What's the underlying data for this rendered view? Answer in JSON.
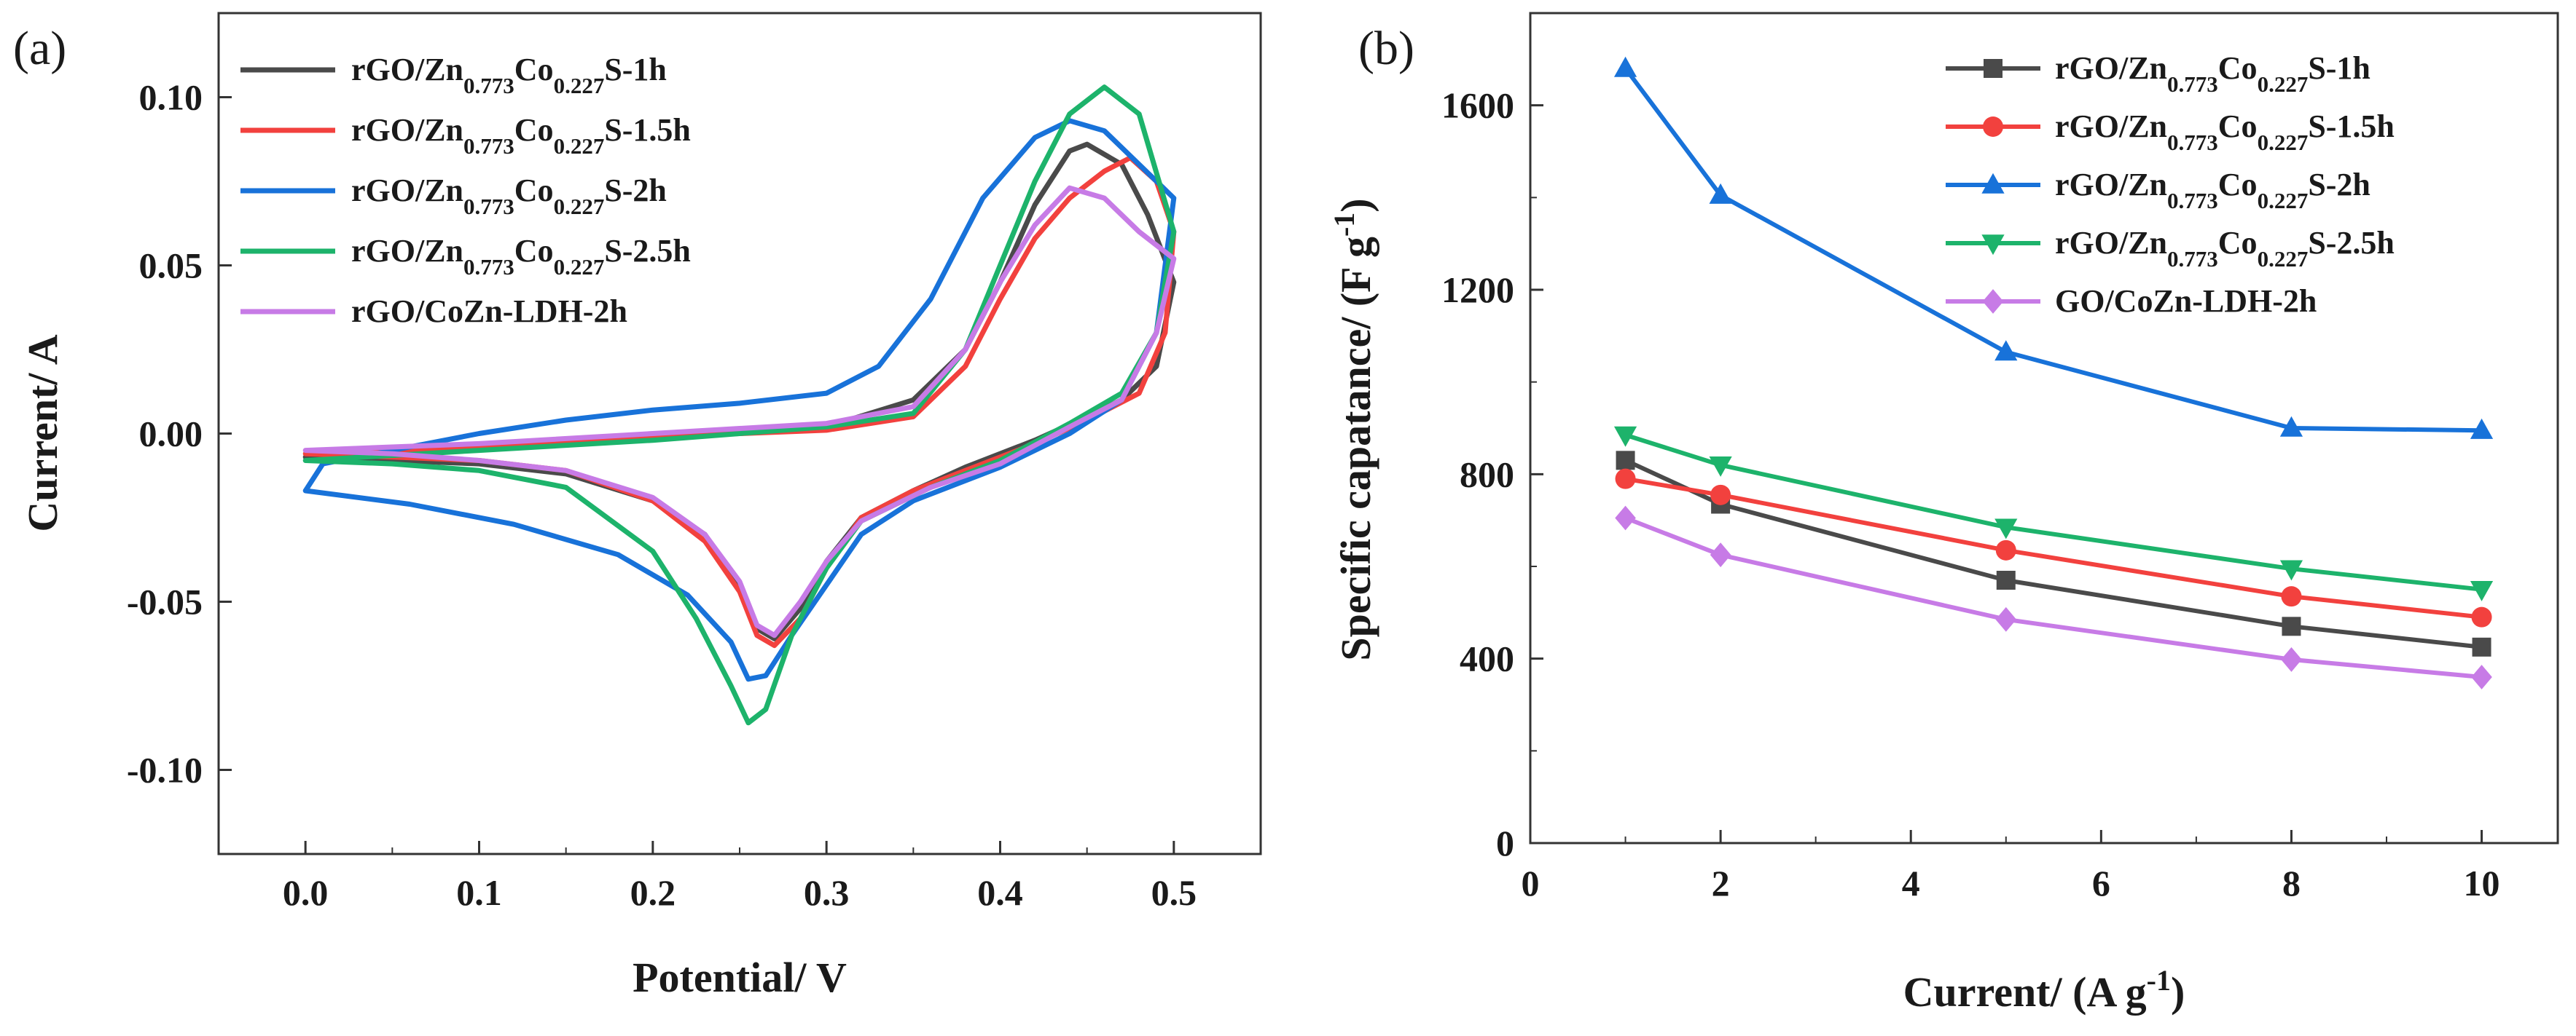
{
  "colors": {
    "black": "#4a4a4a",
    "red": "#f2413e",
    "blue": "#1872d9",
    "green": "#1db36b",
    "violet": "#c77be6"
  },
  "panel_a": {
    "label": "(a)",
    "xlabel": "Potential/ V",
    "ylabel": "Current/ A",
    "legend": [
      {
        "base": "rGO/Zn",
        "sub1": "0.773",
        "mid": "Co",
        "sub2": "0.227",
        "tail": "S-1h",
        "color_key": "black"
      },
      {
        "base": "rGO/Zn",
        "sub1": "0.773",
        "mid": "Co",
        "sub2": "0.227",
        "tail": "S-1.5h",
        "color_key": "red"
      },
      {
        "base": "rGO/Zn",
        "sub1": "0.773",
        "mid": "Co",
        "sub2": "0.227",
        "tail": "S-2h",
        "color_key": "blue"
      },
      {
        "base": "rGO/Zn",
        "sub1": "0.773",
        "mid": "Co",
        "sub2": "0.227",
        "tail": "S-2.5h",
        "color_key": "green"
      },
      {
        "base": "rGO/CoZn-LDH-2h",
        "sub1": "",
        "mid": "",
        "sub2": "",
        "tail": "",
        "color_key": "violet"
      }
    ]
  },
  "panel_b": {
    "label": "(b)",
    "xlabel": "Current/ (A g",
    "xlabel_sup": "-1",
    "xlabel_end": ")",
    "ylabel": "Specific capatance/ (F g",
    "ylabel_sup": "-1",
    "ylabel_end": ")",
    "legend": [
      {
        "base": "rGO/Zn",
        "sub1": "0.773",
        "mid": "Co",
        "sub2": "0.227",
        "tail": "S-1h",
        "color_key": "black",
        "marker": "square"
      },
      {
        "base": "rGO/Zn",
        "sub1": "0.773",
        "mid": "Co",
        "sub2": "0.227",
        "tail": "S-1.5h",
        "color_key": "red",
        "marker": "circle"
      },
      {
        "base": "rGO/Zn",
        "sub1": "0.773",
        "mid": "Co",
        "sub2": "0.227",
        "tail": "S-2h",
        "color_key": "blue",
        "marker": "triangle-up"
      },
      {
        "base": "rGO/Zn",
        "sub1": "0.773",
        "mid": "Co",
        "sub2": "0.227",
        "tail": "S-2.5h",
        "color_key": "green",
        "marker": "triangle-down"
      },
      {
        "base": "GO/CoZn-LDH-2h",
        "sub1": "",
        "mid": "",
        "sub2": "",
        "tail": "",
        "color_key": "violet",
        "marker": "diamond"
      }
    ]
  },
  "chart_data": [
    {
      "type": "line",
      "panel": "(a)",
      "xlabel": "Potential/ V",
      "ylabel": "Current/ A",
      "xlim": [
        -0.05,
        0.55
      ],
      "ylim": [
        -0.125,
        0.125
      ],
      "xticks": [
        0.0,
        0.1,
        0.2,
        0.3,
        0.4,
        0.5
      ],
      "yticks": [
        -0.1,
        -0.05,
        0.0,
        0.05,
        0.1
      ],
      "xtick_labels": [
        "0.0",
        "0.1",
        "0.2",
        "0.3",
        "0.4",
        "0.5"
      ],
      "ytick_labels": [
        "-0.10",
        "-0.05",
        "0.00",
        "0.05",
        "0.10"
      ],
      "grid": false,
      "legend_position": "top-left",
      "series": [
        {
          "name": "rGO/Zn0.773Co0.227S-1h",
          "color_key": "black",
          "points": [
            [
              0.0,
              -0.007
            ],
            [
              0.1,
              -0.004
            ],
            [
              0.2,
              -0.001
            ],
            [
              0.3,
              0.002
            ],
            [
              0.35,
              0.01
            ],
            [
              0.38,
              0.025
            ],
            [
              0.4,
              0.045
            ],
            [
              0.42,
              0.068
            ],
            [
              0.44,
              0.084
            ],
            [
              0.45,
              0.086
            ],
            [
              0.47,
              0.08
            ],
            [
              0.485,
              0.065
            ],
            [
              0.5,
              0.045
            ],
            [
              0.49,
              0.02
            ],
            [
              0.47,
              0.01
            ],
            [
              0.45,
              0.005
            ],
            [
              0.42,
              -0.002
            ],
            [
              0.38,
              -0.01
            ],
            [
              0.35,
              -0.017
            ],
            [
              0.32,
              -0.025
            ],
            [
              0.3,
              -0.038
            ],
            [
              0.285,
              -0.052
            ],
            [
              0.27,
              -0.061
            ],
            [
              0.26,
              -0.058
            ],
            [
              0.25,
              -0.045
            ],
            [
              0.23,
              -0.03
            ],
            [
              0.2,
              -0.02
            ],
            [
              0.15,
              -0.012
            ],
            [
              0.1,
              -0.009
            ],
            [
              0.05,
              -0.008
            ],
            [
              0.0,
              -0.007
            ]
          ]
        },
        {
          "name": "rGO/Zn0.773Co0.227S-1.5h",
          "color_key": "red",
          "points": [
            [
              0.0,
              -0.006
            ],
            [
              0.1,
              -0.004
            ],
            [
              0.2,
              -0.001
            ],
            [
              0.3,
              0.001
            ],
            [
              0.35,
              0.005
            ],
            [
              0.38,
              0.02
            ],
            [
              0.4,
              0.04
            ],
            [
              0.42,
              0.058
            ],
            [
              0.44,
              0.07
            ],
            [
              0.46,
              0.078
            ],
            [
              0.475,
              0.082
            ],
            [
              0.49,
              0.075
            ],
            [
              0.5,
              0.06
            ],
            [
              0.495,
              0.03
            ],
            [
              0.48,
              0.012
            ],
            [
              0.45,
              0.004
            ],
            [
              0.42,
              -0.003
            ],
            [
              0.38,
              -0.011
            ],
            [
              0.35,
              -0.017
            ],
            [
              0.32,
              -0.025
            ],
            [
              0.3,
              -0.04
            ],
            [
              0.285,
              -0.055
            ],
            [
              0.27,
              -0.063
            ],
            [
              0.26,
              -0.06
            ],
            [
              0.25,
              -0.047
            ],
            [
              0.23,
              -0.032
            ],
            [
              0.2,
              -0.02
            ],
            [
              0.15,
              -0.011
            ],
            [
              0.1,
              -0.008
            ],
            [
              0.05,
              -0.007
            ],
            [
              0.0,
              -0.006
            ]
          ]
        },
        {
          "name": "rGO/Zn0.773Co0.227S-2h",
          "color_key": "blue",
          "points": [
            [
              0.0,
              -0.017
            ],
            [
              0.01,
              -0.009
            ],
            [
              0.05,
              -0.005
            ],
            [
              0.1,
              0.0
            ],
            [
              0.15,
              0.004
            ],
            [
              0.2,
              0.007
            ],
            [
              0.25,
              0.009
            ],
            [
              0.3,
              0.012
            ],
            [
              0.33,
              0.02
            ],
            [
              0.36,
              0.04
            ],
            [
              0.39,
              0.07
            ],
            [
              0.42,
              0.088
            ],
            [
              0.44,
              0.093
            ],
            [
              0.46,
              0.09
            ],
            [
              0.48,
              0.08
            ],
            [
              0.5,
              0.07
            ],
            [
              0.49,
              0.03
            ],
            [
              0.47,
              0.01
            ],
            [
              0.44,
              0.0
            ],
            [
              0.4,
              -0.01
            ],
            [
              0.35,
              -0.02
            ],
            [
              0.32,
              -0.03
            ],
            [
              0.3,
              -0.045
            ],
            [
              0.28,
              -0.06
            ],
            [
              0.265,
              -0.072
            ],
            [
              0.255,
              -0.073
            ],
            [
              0.245,
              -0.062
            ],
            [
              0.22,
              -0.048
            ],
            [
              0.18,
              -0.036
            ],
            [
              0.12,
              -0.027
            ],
            [
              0.06,
              -0.021
            ],
            [
              0.0,
              -0.017
            ]
          ]
        },
        {
          "name": "rGO/Zn0.773Co0.227S-2.5h",
          "color_key": "green",
          "points": [
            [
              0.0,
              -0.008
            ],
            [
              0.1,
              -0.005
            ],
            [
              0.2,
              -0.002
            ],
            [
              0.3,
              0.002
            ],
            [
              0.35,
              0.006
            ],
            [
              0.38,
              0.025
            ],
            [
              0.4,
              0.05
            ],
            [
              0.42,
              0.075
            ],
            [
              0.44,
              0.095
            ],
            [
              0.46,
              0.103
            ],
            [
              0.48,
              0.095
            ],
            [
              0.5,
              0.06
            ],
            [
              0.49,
              0.03
            ],
            [
              0.47,
              0.012
            ],
            [
              0.44,
              0.003
            ],
            [
              0.4,
              -0.008
            ],
            [
              0.36,
              -0.016
            ],
            [
              0.32,
              -0.026
            ],
            [
              0.3,
              -0.04
            ],
            [
              0.28,
              -0.06
            ],
            [
              0.265,
              -0.082
            ],
            [
              0.255,
              -0.086
            ],
            [
              0.245,
              -0.075
            ],
            [
              0.225,
              -0.055
            ],
            [
              0.2,
              -0.035
            ],
            [
              0.15,
              -0.016
            ],
            [
              0.1,
              -0.011
            ],
            [
              0.05,
              -0.009
            ],
            [
              0.0,
              -0.008
            ]
          ]
        },
        {
          "name": "rGO/CoZn-LDH-2h",
          "color_key": "violet",
          "points": [
            [
              0.0,
              -0.005
            ],
            [
              0.1,
              -0.003
            ],
            [
              0.2,
              0.0
            ],
            [
              0.3,
              0.003
            ],
            [
              0.35,
              0.008
            ],
            [
              0.38,
              0.025
            ],
            [
              0.4,
              0.045
            ],
            [
              0.42,
              0.062
            ],
            [
              0.44,
              0.073
            ],
            [
              0.46,
              0.07
            ],
            [
              0.48,
              0.06
            ],
            [
              0.5,
              0.052
            ],
            [
              0.49,
              0.03
            ],
            [
              0.47,
              0.01
            ],
            [
              0.44,
              0.002
            ],
            [
              0.4,
              -0.009
            ],
            [
              0.36,
              -0.016
            ],
            [
              0.32,
              -0.026
            ],
            [
              0.3,
              -0.038
            ],
            [
              0.285,
              -0.05
            ],
            [
              0.27,
              -0.06
            ],
            [
              0.26,
              -0.057
            ],
            [
              0.25,
              -0.044
            ],
            [
              0.23,
              -0.03
            ],
            [
              0.2,
              -0.019
            ],
            [
              0.15,
              -0.011
            ],
            [
              0.1,
              -0.008
            ],
            [
              0.05,
              -0.006
            ],
            [
              0.0,
              -0.005
            ]
          ]
        }
      ]
    },
    {
      "type": "line",
      "panel": "(b)",
      "xlabel": "Current/ (A g-1)",
      "ylabel": "Specific capatance/ (F g-1)",
      "xlim": [
        0,
        10.8
      ],
      "ylim": [
        0,
        1800
      ],
      "xticks": [
        0,
        2,
        4,
        6,
        8,
        10
      ],
      "yticks": [
        0,
        400,
        800,
        1200,
        1600
      ],
      "xtick_labels": [
        "0",
        "2",
        "4",
        "6",
        "8",
        "10"
      ],
      "ytick_labels": [
        "0",
        "400",
        "800",
        "1200",
        "1600"
      ],
      "grid": false,
      "legend_position": "top-right",
      "x": [
        1,
        2,
        5,
        8,
        10
      ],
      "series": [
        {
          "name": "rGO/Zn0.773Co0.227S-1h",
          "color_key": "black",
          "marker": "square",
          "values": [
            830,
            735,
            570,
            470,
            425
          ]
        },
        {
          "name": "rGO/Zn0.773Co0.227S-1.5h",
          "color_key": "red",
          "marker": "circle",
          "values": [
            790,
            755,
            635,
            535,
            490
          ]
        },
        {
          "name": "rGO/Zn0.773Co0.227S-2h",
          "color_key": "blue",
          "marker": "triangle-up",
          "values": [
            1680,
            1405,
            1065,
            900,
            895
          ]
        },
        {
          "name": "rGO/Zn0.773Co0.227S-2.5h",
          "color_key": "green",
          "marker": "triangle-down",
          "values": [
            885,
            820,
            685,
            595,
            550
          ]
        },
        {
          "name": "GO/CoZn-LDH-2h",
          "color_key": "violet",
          "marker": "diamond",
          "values": [
            705,
            625,
            485,
            398,
            360
          ]
        }
      ]
    }
  ]
}
